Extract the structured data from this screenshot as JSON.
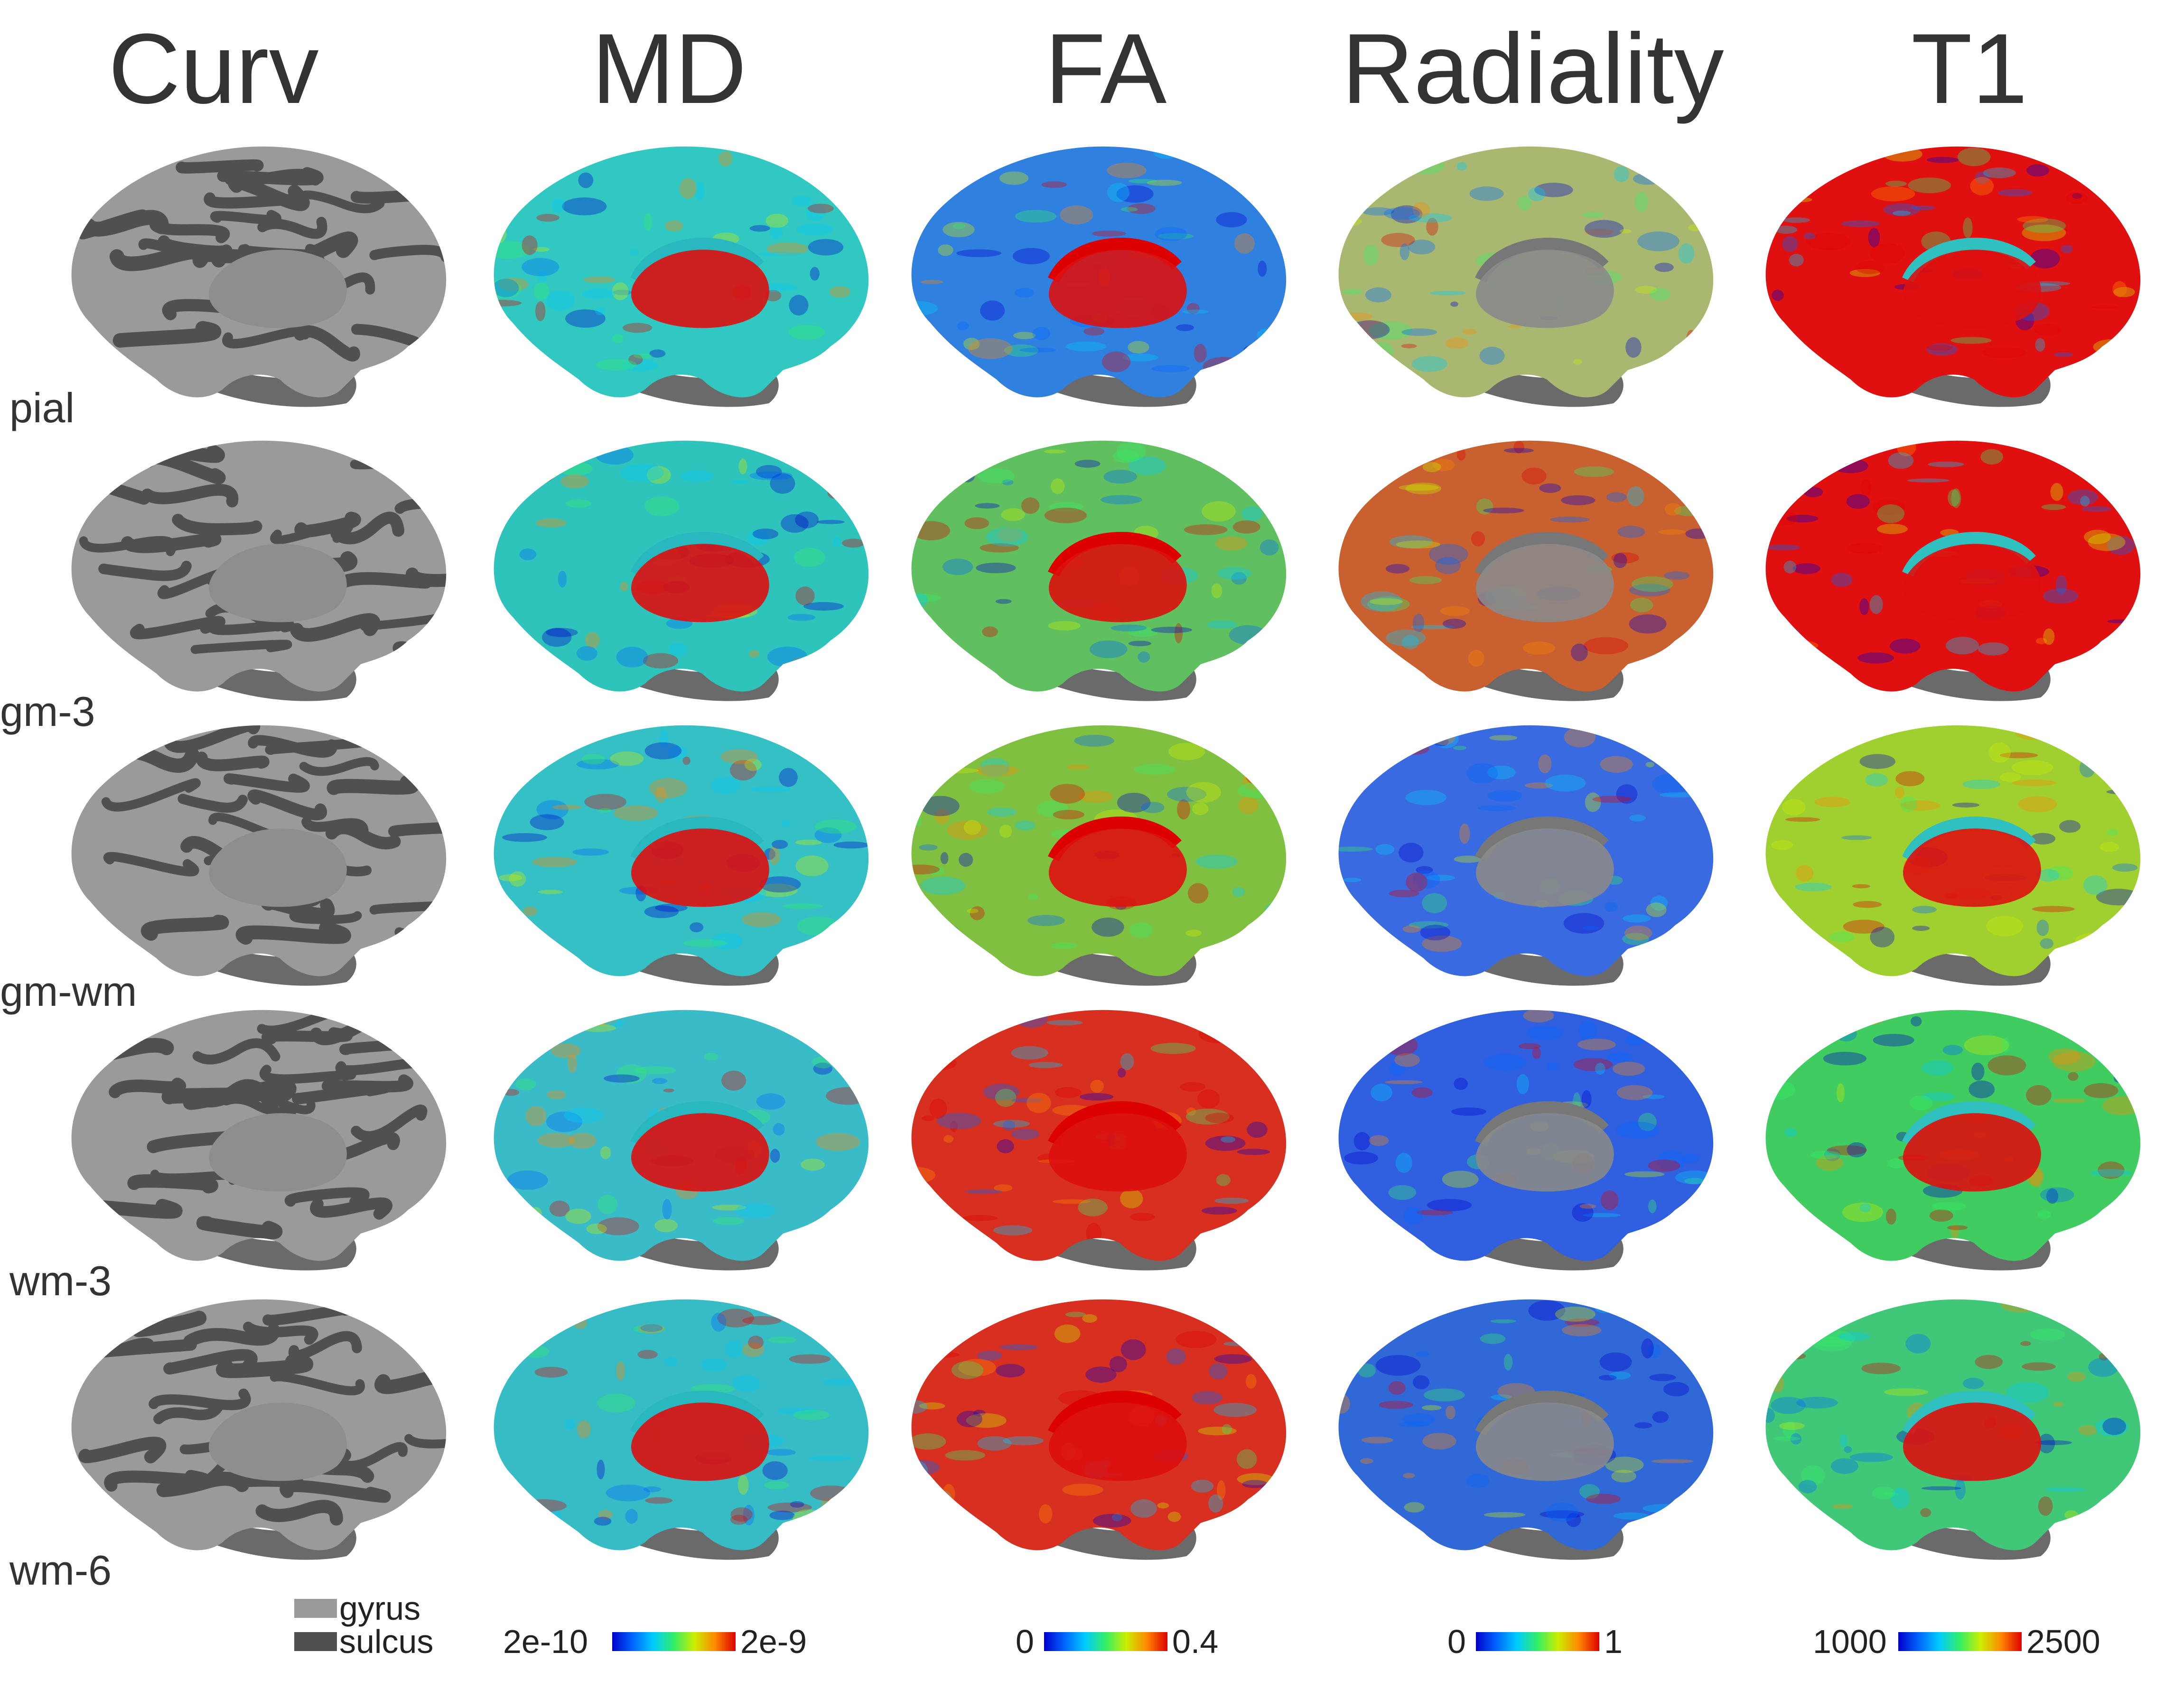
{
  "columns": [
    {
      "title": "Curv"
    },
    {
      "title": "MD"
    },
    {
      "title": "FA"
    },
    {
      "title": "Radiality"
    },
    {
      "title": "T1"
    }
  ],
  "rows": [
    {
      "label": "pial"
    },
    {
      "label": "gm-3"
    },
    {
      "label": "gm-wm"
    },
    {
      "label": "wm-3"
    },
    {
      "label": "wm-6"
    }
  ],
  "curv_legend": {
    "gyrus": {
      "label": "gyrus",
      "color": "#9a9a9a"
    },
    "sulcus": {
      "label": "sulcus",
      "color": "#505050"
    }
  },
  "colorbars": [
    {
      "name": "MD",
      "min": "2e-10",
      "max": "2e-9"
    },
    {
      "name": "FA",
      "min": "0",
      "max": "0.4"
    },
    {
      "name": "Radiality",
      "min": "0",
      "max": "1"
    },
    {
      "name": "T1",
      "min": "1000",
      "max": "2500"
    }
  ],
  "colormap": [
    "#0000cc",
    "#0066ff",
    "#00ccff",
    "#33ee66",
    "#ccee00",
    "#ff8800",
    "#dd0000"
  ],
  "panel_tints": {
    "MD": [
      "#30c8c0",
      "#2ec4bc",
      "#34c0c4",
      "#3abcc8",
      "#36bcc4"
    ],
    "FA": [
      "#3080e0",
      "#60c060",
      "#80c040",
      "#d83020",
      "#d83020"
    ],
    "Radiality": [
      "#a8b870",
      "#c86030",
      "#3a6ae0",
      "#3060e0",
      "#3068d8"
    ],
    "T1": [
      "#e01010",
      "#e01010",
      "#a0d030",
      "#40cc60",
      "#40c878"
    ]
  }
}
